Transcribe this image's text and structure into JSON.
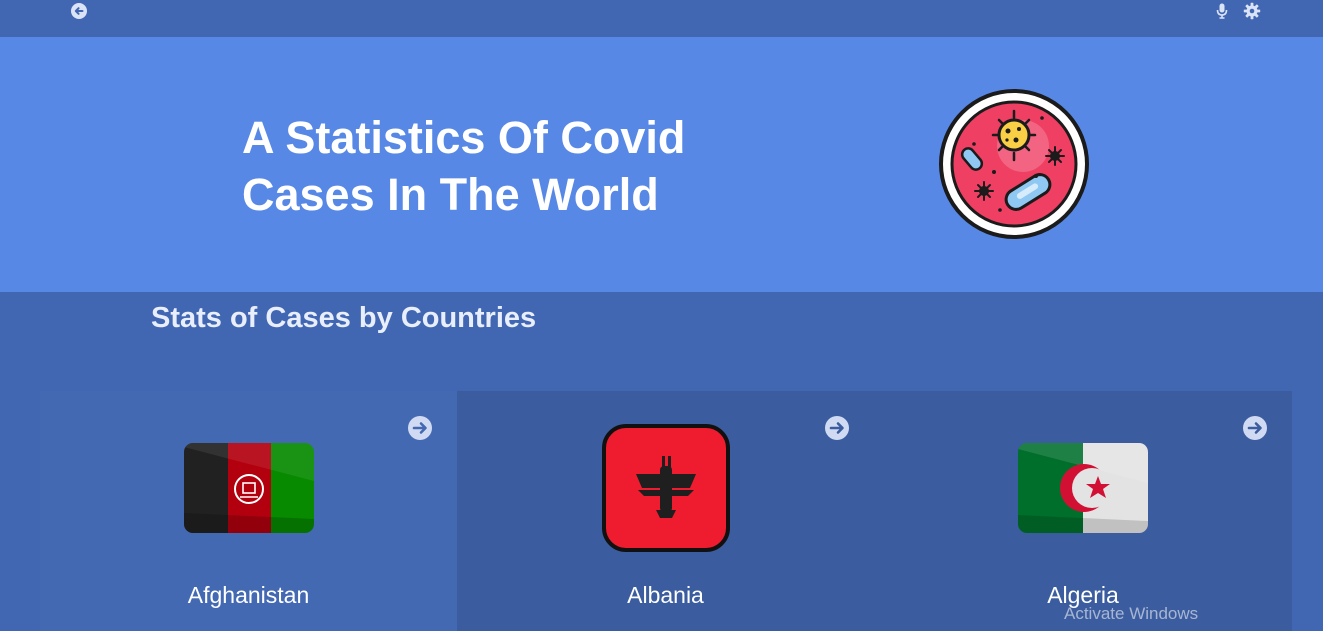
{
  "topbar": {
    "back_icon": "arrow-left-circle-icon",
    "mic_icon": "microphone-icon",
    "settings_icon": "gear-icon"
  },
  "hero": {
    "title_line1": "A Statistics Of Covid",
    "title_line2": "Cases In The World",
    "illustration": "virus-petri-dish-icon"
  },
  "section": {
    "title": "Stats of Cases by Countries"
  },
  "countries": [
    {
      "name": "Afghanistan",
      "flag_icon": "afghanistan-flag-icon",
      "arrow_icon": "arrow-right-circle-icon"
    },
    {
      "name": "Albania",
      "flag_icon": "albania-flag-icon",
      "arrow_icon": "arrow-right-circle-icon"
    },
    {
      "name": "Algeria",
      "flag_icon": "algeria-flag-icon",
      "arrow_icon": "arrow-right-circle-icon"
    }
  ],
  "overlay": {
    "watermark": "Activate Windows"
  },
  "colors": {
    "topbar": "#4267b2",
    "hero": "#5788e6",
    "card_active": "#4469b3",
    "card": "#3b5c9e"
  }
}
